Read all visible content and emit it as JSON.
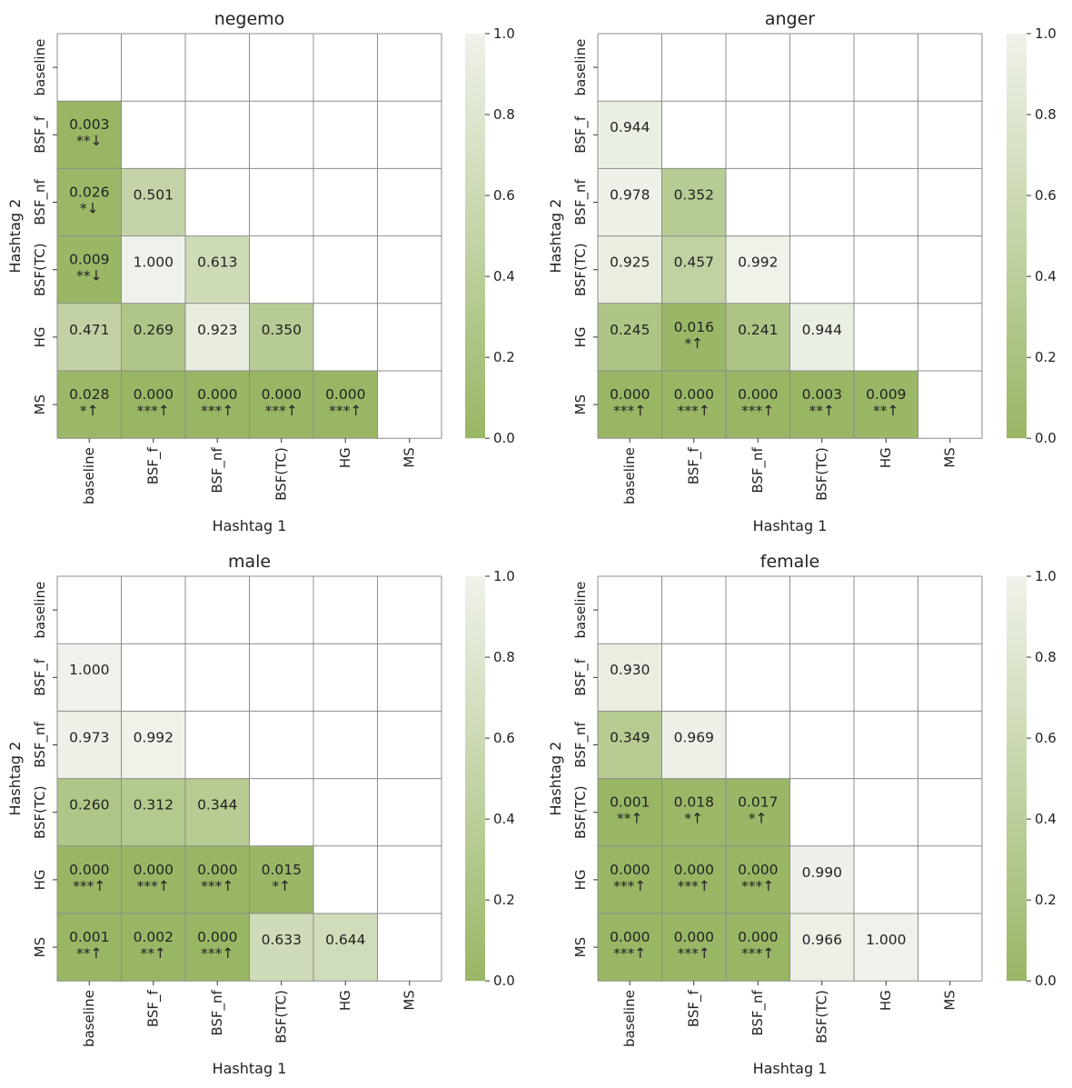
{
  "chart_data": [
    {
      "type": "heatmap",
      "title": "negemo",
      "xlabel": "Hashtag 1",
      "ylabel": "Hashtag 2",
      "categories": [
        "baseline",
        "BSF_f",
        "BSF_nf",
        "BSF(TC)",
        "HG",
        "MS"
      ],
      "colorbar": {
        "range": [
          0.0,
          1.0
        ],
        "ticks": [
          "0.0",
          "0.2",
          "0.4",
          "0.6",
          "0.8",
          "1.0"
        ]
      },
      "rows": [
        {
          "row": "BSF_f",
          "cells": [
            {
              "col": "baseline",
              "value": 0.003,
              "label": "0.003",
              "sig": "**↓"
            }
          ]
        },
        {
          "row": "BSF_nf",
          "cells": [
            {
              "col": "baseline",
              "value": 0.026,
              "label": "0.026",
              "sig": "*↓"
            },
            {
              "col": "BSF_f",
              "value": 0.501,
              "label": "0.501",
              "sig": ""
            }
          ]
        },
        {
          "row": "BSF(TC)",
          "cells": [
            {
              "col": "baseline",
              "value": 0.009,
              "label": "0.009",
              "sig": "**↓"
            },
            {
              "col": "BSF_f",
              "value": 1.0,
              "label": "1.000",
              "sig": ""
            },
            {
              "col": "BSF_nf",
              "value": 0.613,
              "label": "0.613",
              "sig": ""
            }
          ]
        },
        {
          "row": "HG",
          "cells": [
            {
              "col": "baseline",
              "value": 0.471,
              "label": "0.471",
              "sig": ""
            },
            {
              "col": "BSF_f",
              "value": 0.269,
              "label": "0.269",
              "sig": ""
            },
            {
              "col": "BSF_nf",
              "value": 0.923,
              "label": "0.923",
              "sig": ""
            },
            {
              "col": "BSF(TC)",
              "value": 0.35,
              "label": "0.350",
              "sig": ""
            }
          ]
        },
        {
          "row": "MS",
          "cells": [
            {
              "col": "baseline",
              "value": 0.028,
              "label": "0.028",
              "sig": "*↑"
            },
            {
              "col": "BSF_f",
              "value": 0.0,
              "label": "0.000",
              "sig": "***↑"
            },
            {
              "col": "BSF_nf",
              "value": 0.0,
              "label": "0.000",
              "sig": "***↑"
            },
            {
              "col": "BSF(TC)",
              "value": 0.0,
              "label": "0.000",
              "sig": "***↑"
            },
            {
              "col": "HG",
              "value": 0.0,
              "label": "0.000",
              "sig": "***↑"
            }
          ]
        }
      ]
    },
    {
      "type": "heatmap",
      "title": "anger",
      "xlabel": "Hashtag 1",
      "ylabel": "Hashtag 2",
      "categories": [
        "baseline",
        "BSF_f",
        "BSF_nf",
        "BSF(TC)",
        "HG",
        "MS"
      ],
      "colorbar": {
        "range": [
          0.0,
          1.0
        ],
        "ticks": [
          "0.0",
          "0.2",
          "0.4",
          "0.6",
          "0.8",
          "1.0"
        ]
      },
      "rows": [
        {
          "row": "BSF_f",
          "cells": [
            {
              "col": "baseline",
              "value": 0.944,
              "label": "0.944",
              "sig": ""
            }
          ]
        },
        {
          "row": "BSF_nf",
          "cells": [
            {
              "col": "baseline",
              "value": 0.978,
              "label": "0.978",
              "sig": ""
            },
            {
              "col": "BSF_f",
              "value": 0.352,
              "label": "0.352",
              "sig": ""
            }
          ]
        },
        {
          "row": "BSF(TC)",
          "cells": [
            {
              "col": "baseline",
              "value": 0.925,
              "label": "0.925",
              "sig": ""
            },
            {
              "col": "BSF_f",
              "value": 0.457,
              "label": "0.457",
              "sig": ""
            },
            {
              "col": "BSF_nf",
              "value": 0.992,
              "label": "0.992",
              "sig": ""
            }
          ]
        },
        {
          "row": "HG",
          "cells": [
            {
              "col": "baseline",
              "value": 0.245,
              "label": "0.245",
              "sig": ""
            },
            {
              "col": "BSF_f",
              "value": 0.016,
              "label": "0.016",
              "sig": "*↑"
            },
            {
              "col": "BSF_nf",
              "value": 0.241,
              "label": "0.241",
              "sig": ""
            },
            {
              "col": "BSF(TC)",
              "value": 0.944,
              "label": "0.944",
              "sig": ""
            }
          ]
        },
        {
          "row": "MS",
          "cells": [
            {
              "col": "baseline",
              "value": 0.0,
              "label": "0.000",
              "sig": "***↑"
            },
            {
              "col": "BSF_f",
              "value": 0.0,
              "label": "0.000",
              "sig": "***↑"
            },
            {
              "col": "BSF_nf",
              "value": 0.0,
              "label": "0.000",
              "sig": "***↑"
            },
            {
              "col": "BSF(TC)",
              "value": 0.003,
              "label": "0.003",
              "sig": "**↑"
            },
            {
              "col": "HG",
              "value": 0.009,
              "label": "0.009",
              "sig": "**↑"
            }
          ]
        }
      ]
    },
    {
      "type": "heatmap",
      "title": "male",
      "xlabel": "Hashtag 1",
      "ylabel": "Hashtag 2",
      "categories": [
        "baseline",
        "BSF_f",
        "BSF_nf",
        "BSF(TC)",
        "HG",
        "MS"
      ],
      "colorbar": {
        "range": [
          0.0,
          1.0
        ],
        "ticks": [
          "0.0",
          "0.2",
          "0.4",
          "0.6",
          "0.8",
          "1.0"
        ]
      },
      "rows": [
        {
          "row": "BSF_f",
          "cells": [
            {
              "col": "baseline",
              "value": 1.0,
              "label": "1.000",
              "sig": ""
            }
          ]
        },
        {
          "row": "BSF_nf",
          "cells": [
            {
              "col": "baseline",
              "value": 0.973,
              "label": "0.973",
              "sig": ""
            },
            {
              "col": "BSF_f",
              "value": 0.992,
              "label": "0.992",
              "sig": ""
            }
          ]
        },
        {
          "row": "BSF(TC)",
          "cells": [
            {
              "col": "baseline",
              "value": 0.26,
              "label": "0.260",
              "sig": ""
            },
            {
              "col": "BSF_f",
              "value": 0.312,
              "label": "0.312",
              "sig": ""
            },
            {
              "col": "BSF_nf",
              "value": 0.344,
              "label": "0.344",
              "sig": ""
            }
          ]
        },
        {
          "row": "HG",
          "cells": [
            {
              "col": "baseline",
              "value": 0.0,
              "label": "0.000",
              "sig": "***↑"
            },
            {
              "col": "BSF_f",
              "value": 0.0,
              "label": "0.000",
              "sig": "***↑"
            },
            {
              "col": "BSF_nf",
              "value": 0.0,
              "label": "0.000",
              "sig": "***↑"
            },
            {
              "col": "BSF(TC)",
              "value": 0.015,
              "label": "0.015",
              "sig": "*↑"
            }
          ]
        },
        {
          "row": "MS",
          "cells": [
            {
              "col": "baseline",
              "value": 0.001,
              "label": "0.001",
              "sig": "**↑"
            },
            {
              "col": "BSF_f",
              "value": 0.002,
              "label": "0.002",
              "sig": "**↑"
            },
            {
              "col": "BSF_nf",
              "value": 0.0,
              "label": "0.000",
              "sig": "***↑"
            },
            {
              "col": "BSF(TC)",
              "value": 0.633,
              "label": "0.633",
              "sig": ""
            },
            {
              "col": "HG",
              "value": 0.644,
              "label": "0.644",
              "sig": ""
            }
          ]
        }
      ]
    },
    {
      "type": "heatmap",
      "title": "female",
      "xlabel": "Hashtag 1",
      "ylabel": "Hashtag 2",
      "categories": [
        "baseline",
        "BSF_f",
        "BSF_nf",
        "BSF(TC)",
        "HG",
        "MS"
      ],
      "colorbar": {
        "range": [
          0.0,
          1.0
        ],
        "ticks": [
          "0.0",
          "0.2",
          "0.4",
          "0.6",
          "0.8",
          "1.0"
        ]
      },
      "rows": [
        {
          "row": "BSF_f",
          "cells": [
            {
              "col": "baseline",
              "value": 0.93,
              "label": "0.930",
              "sig": ""
            }
          ]
        },
        {
          "row": "BSF_nf",
          "cells": [
            {
              "col": "baseline",
              "value": 0.349,
              "label": "0.349",
              "sig": ""
            },
            {
              "col": "BSF_f",
              "value": 0.969,
              "label": "0.969",
              "sig": ""
            }
          ]
        },
        {
          "row": "BSF(TC)",
          "cells": [
            {
              "col": "baseline",
              "value": 0.001,
              "label": "0.001",
              "sig": "**↑"
            },
            {
              "col": "BSF_f",
              "value": 0.018,
              "label": "0.018",
              "sig": "*↑"
            },
            {
              "col": "BSF_nf",
              "value": 0.017,
              "label": "0.017",
              "sig": "*↑"
            }
          ]
        },
        {
          "row": "HG",
          "cells": [
            {
              "col": "baseline",
              "value": 0.0,
              "label": "0.000",
              "sig": "***↑"
            },
            {
              "col": "BSF_f",
              "value": 0.0,
              "label": "0.000",
              "sig": "***↑"
            },
            {
              "col": "BSF_nf",
              "value": 0.0,
              "label": "0.000",
              "sig": "***↑"
            },
            {
              "col": "BSF(TC)",
              "value": 0.99,
              "label": "0.990",
              "sig": ""
            }
          ]
        },
        {
          "row": "MS",
          "cells": [
            {
              "col": "baseline",
              "value": 0.0,
              "label": "0.000",
              "sig": "***↑"
            },
            {
              "col": "BSF_f",
              "value": 0.0,
              "label": "0.000",
              "sig": "***↑"
            },
            {
              "col": "BSF_nf",
              "value": 0.0,
              "label": "0.000",
              "sig": "***↑"
            },
            {
              "col": "BSF(TC)",
              "value": 0.966,
              "label": "0.966",
              "sig": ""
            },
            {
              "col": "HG",
              "value": 1.0,
              "label": "1.000",
              "sig": ""
            }
          ]
        }
      ]
    }
  ],
  "colors": {
    "low": "#99b665",
    "high": "#eff2ea",
    "grid": "#8c8c8c",
    "text": "#222222"
  }
}
